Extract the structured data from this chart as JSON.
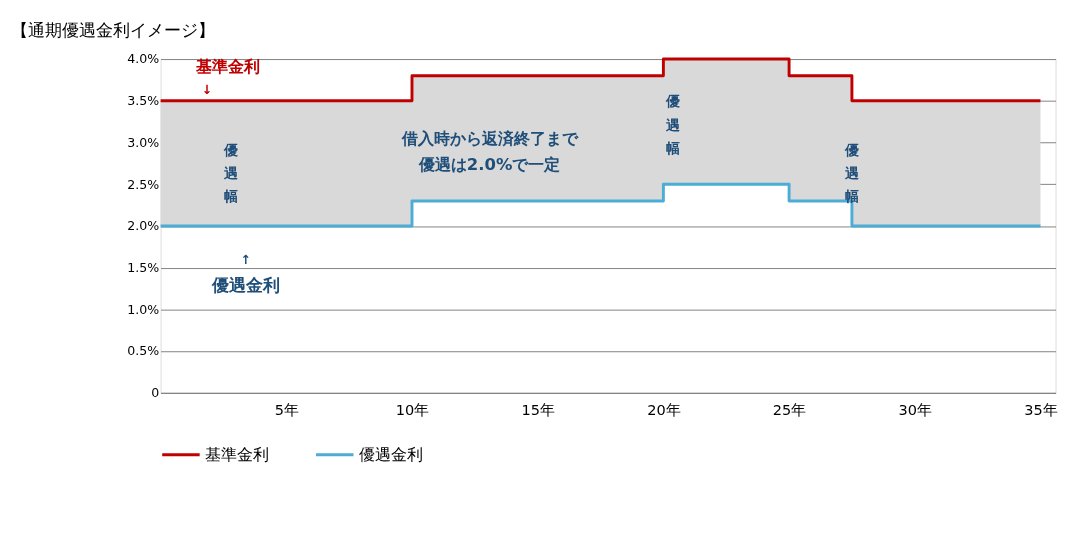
{
  "chart_data": {
    "type": "step",
    "title": "【通期優遇金利イメージ】",
    "x": [
      0,
      10,
      20,
      25,
      27.5,
      35
    ],
    "series": [
      {
        "name": "基準金利",
        "color": "#c00000",
        "values": [
          3.5,
          3.8,
          4.0,
          3.8,
          3.5,
          3.5
        ],
        "lower": [
          2.0,
          2.3,
          2.5,
          2.3,
          2.0,
          2.0
        ],
        "upper": [
          3.5,
          3.8,
          4.0,
          3.8,
          3.5,
          3.5
        ]
      },
      {
        "name": "優遇金利",
        "color": "#4bacd6",
        "values": [
          2.0,
          2.3,
          2.5,
          2.3,
          2.0,
          2.0
        ]
      }
    ],
    "xlim": [
      0,
      35.6
    ],
    "xticks": [
      {
        "value": 5,
        "label": "5年"
      },
      {
        "value": 10,
        "label": "10年"
      },
      {
        "value": 15,
        "label": "15年"
      },
      {
        "value": 20,
        "label": "20年"
      },
      {
        "value": 25,
        "label": "25年"
      },
      {
        "value": 30,
        "label": "30年"
      },
      {
        "value": 35,
        "label": "35年"
      }
    ],
    "ylim": [
      0,
      4.0
    ],
    "yticks": [
      0,
      {
        "value": 0.5,
        "label": "0.5%"
      },
      {
        "value": 1.0,
        "label": "1.0%"
      },
      {
        "value": 1.5,
        "label": "1.5%"
      },
      {
        "value": 2.0,
        "label": "2.0%"
      },
      {
        "value": 2.5,
        "label": "2.5%"
      },
      {
        "value": 3.0,
        "label": "3.0%"
      },
      {
        "value": 3.5,
        "label": "3.5%"
      },
      {
        "value": 4.0,
        "label": "4.0%"
      }
    ],
    "annotations": [
      "基準金利",
      "↓",
      "↑",
      "優遇金利",
      "借入時から返済終了まで",
      "優遇は2.0%で一定",
      "優遇幅",
      "優遇幅",
      "優遇幅"
    ],
    "grid": "y",
    "legend": "bottom",
    "line_style": "solid",
    "marker": "none"
  }
}
